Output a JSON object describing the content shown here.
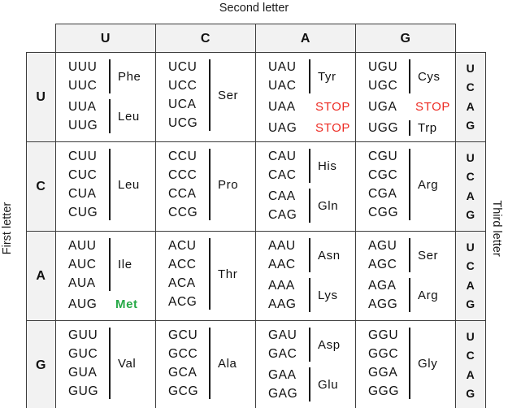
{
  "labels": {
    "top": "Second letter",
    "left": "First letter",
    "right": "Third letter"
  },
  "colors": {
    "stop_red": "#ed2c24",
    "met_green": "#27a947",
    "header_bg": "#f2f2f2",
    "border": "#3c3c3c"
  },
  "second_letters": [
    "U",
    "C",
    "A",
    "G"
  ],
  "third_letters": [
    "U",
    "C",
    "A",
    "G"
  ],
  "rows": [
    {
      "first_letter": "U",
      "cells": [
        {
          "groups": [
            {
              "codons": [
                "UUU",
                "UUC"
              ],
              "name": "Phe",
              "bracket": true,
              "color": null
            },
            {
              "codons": [
                "UUA",
                "UUG"
              ],
              "name": "Leu",
              "bracket": true,
              "color": null
            }
          ]
        },
        {
          "groups": [
            {
              "codons": [
                "UCU",
                "UCC",
                "UCA",
                "UCG"
              ],
              "name": "Ser",
              "bracket": true,
              "color": null
            }
          ]
        },
        {
          "groups": [
            {
              "codons": [
                "UAU",
                "UAC"
              ],
              "name": "Tyr",
              "bracket": true,
              "color": null
            },
            {
              "codons": [
                "UAA"
              ],
              "name": "STOP",
              "bracket": false,
              "color": "red"
            },
            {
              "codons": [
                "UAG"
              ],
              "name": "STOP",
              "bracket": false,
              "color": "red"
            }
          ]
        },
        {
          "groups": [
            {
              "codons": [
                "UGU",
                "UGC"
              ],
              "name": "Cys",
              "bracket": true,
              "color": null
            },
            {
              "codons": [
                "UGA"
              ],
              "name": "STOP",
              "bracket": false,
              "color": "red"
            },
            {
              "codons": [
                "UGG"
              ],
              "name": "Trp",
              "bracket": true,
              "color": null
            }
          ]
        }
      ]
    },
    {
      "first_letter": "C",
      "cells": [
        {
          "groups": [
            {
              "codons": [
                "CUU",
                "CUC",
                "CUA",
                "CUG"
              ],
              "name": "Leu",
              "bracket": true,
              "color": null
            }
          ]
        },
        {
          "groups": [
            {
              "codons": [
                "CCU",
                "CCC",
                "CCA",
                "CCG"
              ],
              "name": "Pro",
              "bracket": true,
              "color": null
            }
          ]
        },
        {
          "groups": [
            {
              "codons": [
                "CAU",
                "CAC"
              ],
              "name": "His",
              "bracket": true,
              "color": null
            },
            {
              "codons": [
                "CAA",
                "CAG"
              ],
              "name": "Gln",
              "bracket": true,
              "color": null
            }
          ]
        },
        {
          "groups": [
            {
              "codons": [
                "CGU",
                "CGC",
                "CGA",
                "CGG"
              ],
              "name": "Arg",
              "bracket": true,
              "color": null
            }
          ]
        }
      ]
    },
    {
      "first_letter": "A",
      "cells": [
        {
          "groups": [
            {
              "codons": [
                "AUU",
                "AUC",
                "AUA"
              ],
              "name": "Ile",
              "bracket": true,
              "color": null
            },
            {
              "codons": [
                "AUG"
              ],
              "name": "Met",
              "bracket": false,
              "color": "green"
            }
          ]
        },
        {
          "groups": [
            {
              "codons": [
                "ACU",
                "ACC",
                "ACA",
                "ACG"
              ],
              "name": "Thr",
              "bracket": true,
              "color": null
            }
          ]
        },
        {
          "groups": [
            {
              "codons": [
                "AAU",
                "AAC"
              ],
              "name": "Asn",
              "bracket": true,
              "color": null
            },
            {
              "codons": [
                "AAA",
                "AAG"
              ],
              "name": "Lys",
              "bracket": true,
              "color": null
            }
          ]
        },
        {
          "groups": [
            {
              "codons": [
                "AGU",
                "AGC"
              ],
              "name": "Ser",
              "bracket": true,
              "color": null
            },
            {
              "codons": [
                "AGA",
                "AGG"
              ],
              "name": "Arg",
              "bracket": true,
              "color": null
            }
          ]
        }
      ]
    },
    {
      "first_letter": "G",
      "cells": [
        {
          "groups": [
            {
              "codons": [
                "GUU",
                "GUC",
                "GUA",
                "GUG"
              ],
              "name": "Val",
              "bracket": true,
              "color": null
            }
          ]
        },
        {
          "groups": [
            {
              "codons": [
                "GCU",
                "GCC",
                "GCA",
                "GCG"
              ],
              "name": "Ala",
              "bracket": true,
              "color": null
            }
          ]
        },
        {
          "groups": [
            {
              "codons": [
                "GAU",
                "GAC"
              ],
              "name": "Asp",
              "bracket": true,
              "color": null
            },
            {
              "codons": [
                "GAA",
                "GAG"
              ],
              "name": "Glu",
              "bracket": true,
              "color": null
            }
          ]
        },
        {
          "groups": [
            {
              "codons": [
                "GGU",
                "GGC",
                "GGA",
                "GGG"
              ],
              "name": "Gly",
              "bracket": true,
              "color": null
            }
          ]
        }
      ]
    }
  ]
}
